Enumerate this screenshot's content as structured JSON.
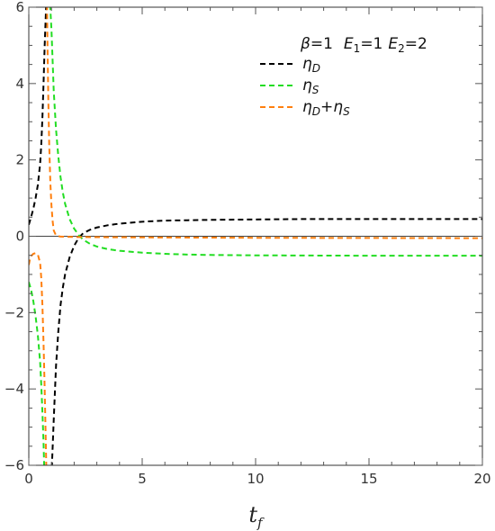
{
  "chart_data": {
    "type": "line",
    "xlabel": "t",
    "xlabel_sub": "f",
    "ylabel": "",
    "xlim": [
      0,
      20
    ],
    "ylim": [
      -6,
      6
    ],
    "x_ticks": [
      0,
      5,
      10,
      15,
      20
    ],
    "y_ticks": [
      -6,
      -4,
      -2,
      0,
      2,
      4,
      6
    ],
    "x_tick_labels": [
      "0",
      "5",
      "10",
      "15",
      "20"
    ],
    "y_tick_labels": [
      "−6",
      "−4",
      "−2",
      "0",
      "2",
      "4",
      "6"
    ],
    "legend_position": "top-right",
    "parameters": {
      "beta": {
        "symbol": "β",
        "eq": "=1"
      },
      "E1": {
        "base": "E",
        "sub": "1",
        "eq": "=1"
      },
      "E2": {
        "base": "E",
        "sub": "2",
        "eq": "=2"
      }
    },
    "series": [
      {
        "name": "ηD",
        "legend_base": "η",
        "legend_sub": "D",
        "color": "#000000",
        "dash": true,
        "segments": [
          [
            [
              0.0,
              0.3
            ],
            [
              0.1,
              0.5
            ],
            [
              0.2,
              0.72
            ],
            [
              0.3,
              1.0
            ],
            [
              0.4,
              1.35
            ],
            [
              0.5,
              1.9
            ],
            [
              0.55,
              2.4
            ],
            [
              0.6,
              3.1
            ],
            [
              0.65,
              4.0
            ],
            [
              0.7,
              5.0
            ],
            [
              0.75,
              5.8
            ],
            [
              0.78,
              6.3
            ]
          ],
          [
            [
              1.0,
              -6.3
            ],
            [
              1.1,
              -4.8
            ],
            [
              1.2,
              -3.4
            ],
            [
              1.3,
              -2.5
            ],
            [
              1.4,
              -1.8
            ],
            [
              1.5,
              -1.35
            ],
            [
              1.6,
              -1.0
            ],
            [
              1.8,
              -0.55
            ],
            [
              2.0,
              -0.25
            ],
            [
              2.2,
              -0.04
            ],
            [
              2.4,
              0.08
            ],
            [
              2.7,
              0.17
            ],
            [
              3.0,
              0.23
            ],
            [
              3.5,
              0.29
            ],
            [
              4.0,
              0.33
            ],
            [
              5.0,
              0.38
            ],
            [
              6.0,
              0.41
            ],
            [
              7.0,
              0.42
            ],
            [
              8.0,
              0.43
            ],
            [
              10.0,
              0.44
            ],
            [
              12.0,
              0.45
            ],
            [
              15.0,
              0.45
            ],
            [
              20.0,
              0.45
            ]
          ]
        ]
      },
      {
        "name": "ηS",
        "legend_base": "η",
        "legend_sub": "S",
        "color": "#22dd22",
        "dash": true,
        "segments": [
          [
            [
              0.0,
              -1.2
            ],
            [
              0.1,
              -1.4
            ],
            [
              0.2,
              -1.7
            ],
            [
              0.3,
              -2.1
            ],
            [
              0.4,
              -2.6
            ],
            [
              0.5,
              -3.3
            ],
            [
              0.55,
              -3.9
            ],
            [
              0.6,
              -4.6
            ],
            [
              0.65,
              -5.4
            ],
            [
              0.69,
              -6.3
            ]
          ],
          [
            [
              0.92,
              6.3
            ],
            [
              1.0,
              5.4
            ],
            [
              1.1,
              3.8
            ],
            [
              1.2,
              2.8
            ],
            [
              1.3,
              2.1
            ],
            [
              1.4,
              1.55
            ],
            [
              1.5,
              1.15
            ],
            [
              1.6,
              0.85
            ],
            [
              1.8,
              0.45
            ],
            [
              2.0,
              0.2
            ],
            [
              2.2,
              0.03
            ],
            [
              2.4,
              -0.09
            ],
            [
              2.7,
              -0.2
            ],
            [
              3.0,
              -0.27
            ],
            [
              3.5,
              -0.34
            ],
            [
              4.0,
              -0.38
            ],
            [
              5.0,
              -0.43
            ],
            [
              6.0,
              -0.46
            ],
            [
              7.0,
              -0.48
            ],
            [
              8.0,
              -0.49
            ],
            [
              10.0,
              -0.5
            ],
            [
              15.0,
              -0.51
            ],
            [
              20.0,
              -0.51
            ]
          ]
        ]
      },
      {
        "name": "ηD+ηS",
        "legend_base": "η",
        "legend_sub": "D",
        "legend_base2": "η",
        "legend_sub2": "S",
        "color": "#ff7f0e",
        "dash": true,
        "segments": [
          [
            [
              0.0,
              -0.75
            ],
            [
              0.05,
              -0.6
            ],
            [
              0.1,
              -0.52
            ],
            [
              0.2,
              -0.46
            ],
            [
              0.3,
              -0.44
            ],
            [
              0.4,
              -0.48
            ],
            [
              0.5,
              -0.7
            ],
            [
              0.55,
              -1.1
            ],
            [
              0.6,
              -1.8
            ],
            [
              0.65,
              -2.8
            ],
            [
              0.7,
              -4.0
            ],
            [
              0.75,
              -5.4
            ],
            [
              0.78,
              -6.3
            ]
          ],
          [
            [
              0.8,
              6.3
            ],
            [
              0.82,
              5.2
            ],
            [
              0.86,
              3.6
            ],
            [
              0.9,
              2.4
            ],
            [
              0.95,
              1.4
            ],
            [
              1.0,
              0.8
            ],
            [
              1.05,
              0.4
            ],
            [
              1.1,
              0.15
            ],
            [
              1.2,
              0.02
            ],
            [
              1.4,
              -0.01
            ],
            [
              2.0,
              -0.02
            ],
            [
              5.0,
              -0.03
            ],
            [
              10.0,
              -0.04
            ],
            [
              20.0,
              -0.05
            ]
          ]
        ]
      }
    ]
  }
}
